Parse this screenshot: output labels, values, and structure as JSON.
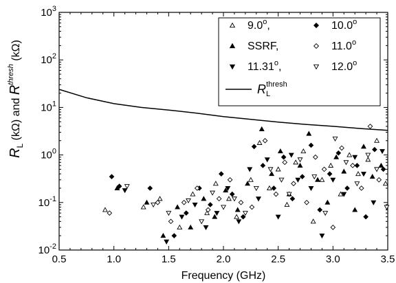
{
  "chart_data": {
    "type": "scatter",
    "xlabel": "Frequency (GHz)",
    "ylabel": {
      "R": "R",
      "L_sub": "L",
      "unit": "(kΩ)",
      "and": "and",
      "thresh_sup": "thresh",
      "unit2": "(kΩ)"
    },
    "xlim": [
      0.5,
      3.5
    ],
    "ylim": [
      0.01,
      1000
    ],
    "y_scale": "log",
    "x_ticks": [
      0.5,
      1.0,
      1.5,
      2.0,
      2.5,
      3.0,
      3.5
    ],
    "x_tick_labels": [
      "0.5",
      "1.0",
      "1.5",
      "2.0",
      "2.5",
      "3.0",
      "3.5"
    ],
    "y_ticks": [
      {
        "value": 0.01,
        "base": "10",
        "exp": "-2"
      },
      {
        "value": 0.1,
        "base": "10",
        "exp": "-1"
      },
      {
        "value": 1,
        "base": "10",
        "exp": "0"
      },
      {
        "value": 10,
        "base": "10",
        "exp": "1"
      },
      {
        "value": 100,
        "base": "10",
        "exp": "2"
      },
      {
        "value": 1000,
        "base": "10",
        "exp": "3"
      }
    ],
    "legend_position": "top-right",
    "series": [
      {
        "name": "9.0°,",
        "marker": "triangle-up-open",
        "x": [
          0.92,
          1.27,
          1.42,
          1.6,
          1.72,
          1.85,
          1.93,
          2.05,
          2.12,
          2.25,
          2.33,
          2.42,
          2.5,
          2.58,
          2.66,
          2.73,
          2.82,
          2.9,
          2.98,
          3.07,
          3.15,
          3.23,
          3.32,
          3.4,
          3.48
        ],
        "y": [
          0.07,
          0.08,
          0.12,
          0.03,
          0.15,
          0.06,
          0.25,
          0.12,
          0.05,
          0.3,
          1.8,
          0.2,
          0.5,
          0.09,
          0.7,
          1.2,
          0.04,
          0.3,
          0.6,
          0.15,
          1.0,
          0.4,
          0.8,
          2.0,
          0.25
        ]
      },
      {
        "name": "10.0°",
        "marker": "diamond-filled",
        "x": [
          0.98,
          1.05,
          1.33,
          1.55,
          1.66,
          1.78,
          1.88,
          1.98,
          2.08,
          2.18,
          2.28,
          2.36,
          2.46,
          2.55,
          2.63,
          2.72,
          2.8,
          2.88,
          2.97,
          3.05,
          3.13,
          3.22,
          3.3,
          3.38,
          3.46
        ],
        "y": [
          0.35,
          0.22,
          0.2,
          0.02,
          0.06,
          0.2,
          0.09,
          0.4,
          0.15,
          0.05,
          1.5,
          0.6,
          0.2,
          0.9,
          0.12,
          0.35,
          1.6,
          0.07,
          0.4,
          1.1,
          0.2,
          0.6,
          0.05,
          1.3,
          0.5
        ]
      },
      {
        "name": "SSRF,",
        "marker": "triangle-up-filled",
        "x": [
          1.03,
          1.3,
          1.45,
          1.58,
          1.7,
          1.82,
          1.92,
          2.02,
          2.13,
          2.22,
          2.35,
          2.44,
          2.52,
          2.6,
          2.7,
          2.78,
          2.86,
          2.95,
          3.03,
          3.1,
          3.2,
          3.28,
          3.36,
          3.44
        ],
        "y": [
          0.2,
          0.1,
          0.02,
          0.08,
          0.03,
          0.12,
          0.05,
          0.18,
          0.07,
          0.25,
          3.5,
          0.4,
          1.2,
          0.15,
          0.6,
          2.8,
          0.3,
          0.1,
          0.9,
          0.45,
          0.07,
          1.5,
          0.35,
          0.6
        ]
      },
      {
        "name": "11.0°",
        "marker": "diamond-open",
        "x": [
          0.96,
          1.4,
          1.52,
          1.64,
          1.76,
          1.86,
          1.96,
          2.06,
          2.16,
          2.26,
          2.38,
          2.48,
          2.56,
          2.64,
          2.76,
          2.84,
          2.92,
          3.0,
          3.08,
          3.18,
          3.26,
          3.34,
          3.42
        ],
        "y": [
          0.06,
          0.1,
          0.04,
          0.1,
          0.2,
          0.07,
          0.12,
          0.3,
          0.1,
          0.08,
          2.0,
          0.15,
          0.7,
          0.25,
          0.1,
          0.9,
          0.5,
          0.03,
          1.4,
          0.6,
          0.2,
          4.0,
          0.3
        ]
      },
      {
        "name": "11.31°,",
        "marker": "triangle-down-filled",
        "x": [
          1.1,
          1.48,
          1.62,
          1.74,
          1.84,
          1.94,
          2.04,
          2.14,
          2.24,
          2.32,
          2.4,
          2.5,
          2.62,
          2.68,
          2.8,
          2.9,
          3.0,
          3.1,
          3.2,
          3.28,
          3.37,
          3.45
        ],
        "y": [
          0.18,
          0.015,
          0.05,
          0.09,
          0.03,
          0.06,
          0.2,
          0.04,
          0.5,
          0.12,
          0.8,
          0.05,
          1.0,
          0.3,
          0.2,
          0.02,
          0.3,
          0.15,
          0.9,
          0.4,
          0.1,
          1.2
        ]
      },
      {
        "name": "12.0°",
        "marker": "triangle-down-open",
        "x": [
          1.12,
          1.36,
          1.5,
          1.68,
          1.8,
          1.9,
          2.0,
          2.1,
          2.2,
          2.3,
          2.43,
          2.53,
          2.6,
          2.7,
          2.83,
          2.93,
          3.02,
          3.12,
          3.22,
          3.32,
          3.4,
          3.49
        ],
        "y": [
          0.22,
          0.09,
          0.06,
          0.11,
          0.04,
          0.16,
          0.08,
          0.12,
          0.06,
          0.2,
          0.5,
          0.3,
          0.15,
          0.8,
          0.35,
          0.06,
          2.2,
          0.7,
          0.25,
          1.0,
          0.5,
          0.08
        ]
      },
      {
        "name": "R_L^thresh",
        "marker": "line",
        "x": [
          0.5,
          0.75,
          1.0,
          1.25,
          1.5,
          1.75,
          2.0,
          2.25,
          2.5,
          2.75,
          3.0,
          3.25,
          3.5
        ],
        "y": [
          24,
          16,
          12,
          10,
          8.8,
          7.6,
          6.4,
          5.6,
          4.9,
          4.4,
          4.0,
          3.6,
          3.3
        ]
      }
    ]
  }
}
